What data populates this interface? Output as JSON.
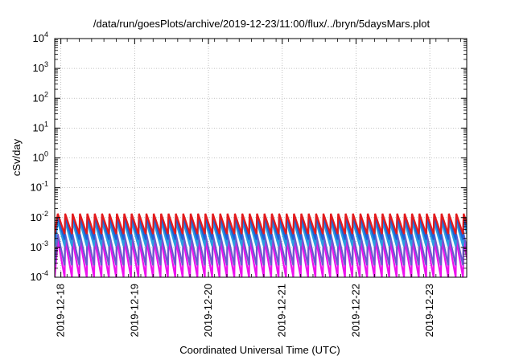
{
  "chart_data": {
    "type": "line",
    "title": "/data/run/goesPlots/archive/2019-12-23/11:00/flux/../bryn/5daysMars.plot",
    "xlabel": "Coordinated Universal Time (UTC)",
    "ylabel": "cSv/day",
    "y_scale": "log",
    "ylim": [
      0.0001,
      10000
    ],
    "y_ticks": [
      {
        "base": "10",
        "exp": "-4",
        "value": 0.0001
      },
      {
        "base": "10",
        "exp": "-3",
        "value": 0.001
      },
      {
        "base": "10",
        "exp": "-2",
        "value": 0.01
      },
      {
        "base": "10",
        "exp": "-1",
        "value": 0.1
      },
      {
        "base": "10",
        "exp": "0",
        "value": 1
      },
      {
        "base": "10",
        "exp": "1",
        "value": 10
      },
      {
        "base": "10",
        "exp": "2",
        "value": 100
      },
      {
        "base": "10",
        "exp": "3",
        "value": 1000
      },
      {
        "base": "10",
        "exp": "4",
        "value": 10000
      }
    ],
    "xlim": [
      "2019-12-17T22:00",
      "2019-12-23T12:00"
    ],
    "x_ticks": [
      "2019-12-18",
      "2019-12-19",
      "2019-12-20",
      "2019-12-21",
      "2019-12-22",
      "2019-12-23"
    ],
    "grid": true,
    "sawtooth": {
      "period_hours": 2.4,
      "phase_start": "2019-12-17T23:00",
      "series": [
        {
          "color": "#e41a1c",
          "peak": 0.0135,
          "trough": 0.0028
        },
        {
          "color": "#1f5fd6",
          "peak": 0.0105,
          "trough": 0.0018
        },
        {
          "color": "#2a9fe0",
          "peak": 0.0075,
          "trough": 0.0011
        },
        {
          "color": "#6a5acd",
          "peak": 0.0028,
          "trough": 0.00025
        },
        {
          "color": "#ee11ee",
          "peak": 0.0018,
          "trough": 0.0001
        }
      ]
    }
  },
  "colors": {
    "axis": "#000000",
    "grid": "#b0b0b0",
    "background": "#ffffff"
  }
}
